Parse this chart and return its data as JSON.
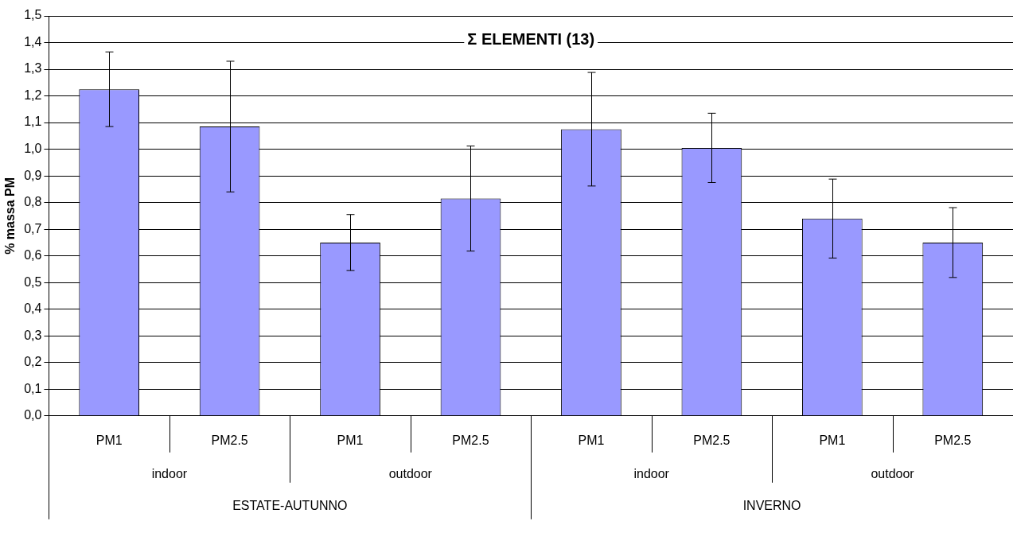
{
  "chart_data": {
    "type": "bar",
    "title": "Σ ELEMENTI (13)",
    "ylabel": "% massa PM",
    "categories": [
      "PM1",
      "PM2.5",
      "PM1",
      "PM2.5",
      "PM1",
      "PM2.5",
      "PM1",
      "PM2.5"
    ],
    "annotations": [
      "indoor",
      "outdoor",
      "indoor",
      "outdoor",
      "ESTATE-AUTUNNO",
      "INVERNO"
    ],
    "values": [
      1.225,
      1.085,
      0.65,
      0.815,
      1.075,
      1.005,
      0.74,
      0.65
    ],
    "errors": [
      0.14,
      0.245,
      0.105,
      0.197,
      0.213,
      0.13,
      0.148,
      0.131
    ],
    "color": "#9999ff",
    "ylim": [
      0,
      1.5
    ],
    "yticks": [
      {
        "value": 0,
        "label": "0,0"
      },
      {
        "value": 0.1,
        "label": "0,1"
      },
      {
        "value": 0.2,
        "label": "0,2"
      },
      {
        "value": 0.3,
        "label": "0,3"
      },
      {
        "value": 0.4,
        "label": "0,4"
      },
      {
        "value": 0.5,
        "label": "0,5"
      },
      {
        "value": 0.6,
        "label": "0,6"
      },
      {
        "value": 0.7,
        "label": "0,7"
      },
      {
        "value": 0.8,
        "label": "0,8"
      },
      {
        "value": 0.9,
        "label": "0,9"
      },
      {
        "value": 1.0,
        "label": "1,0"
      },
      {
        "value": 1.1,
        "label": "1,1"
      },
      {
        "value": 1.2,
        "label": "1,2"
      },
      {
        "value": 1.3,
        "label": "1,3"
      },
      {
        "value": 1.4,
        "label": "1,4"
      },
      {
        "value": 1.5,
        "label": "1,5"
      }
    ],
    "grid": "y",
    "legend": false
  }
}
